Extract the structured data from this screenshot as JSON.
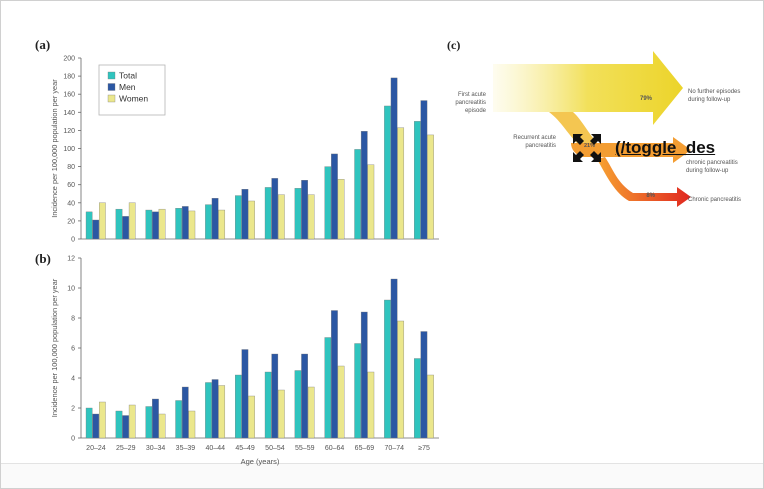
{
  "panels": {
    "a": "(a)",
    "b": "(b)",
    "c": "(c)"
  },
  "legend": [
    "Total",
    "Men",
    "Women"
  ],
  "colors": {
    "total": "#2fc4be",
    "men": "#2b57a3",
    "women": "#ebe78c",
    "axis_text": "#555555"
  },
  "toggle_link": {
    "label": "(/toggle_des",
    "icon": "expand-arrows-icon"
  },
  "chart_data": [
    {
      "type": "bar",
      "panel": "(a)",
      "ylabel": "Incidence per 100,000 population per year",
      "xlabel": "",
      "ylim": [
        0,
        200
      ],
      "yticks": [
        0,
        20,
        40,
        60,
        80,
        100,
        120,
        140,
        160,
        180,
        200
      ],
      "categories": [
        "20–24",
        "25–29",
        "30–34",
        "35–39",
        "40–44",
        "45–49",
        "50–54",
        "55–59",
        "60–64",
        "65–69",
        "70–74",
        "≥75"
      ],
      "series": [
        {
          "name": "Total",
          "values": [
            30,
            33,
            32,
            34,
            38,
            48,
            57,
            56,
            80,
            99,
            147,
            130
          ]
        },
        {
          "name": "Men",
          "values": [
            21,
            25,
            30,
            36,
            45,
            55,
            67,
            65,
            94,
            119,
            178,
            153
          ]
        },
        {
          "name": "Women",
          "values": [
            40,
            40,
            33,
            31,
            32,
            42,
            49,
            49,
            66,
            82,
            123,
            115
          ]
        }
      ],
      "legend_position": "top-left",
      "grid": false
    },
    {
      "type": "bar",
      "panel": "(b)",
      "ylabel": "Incidence per 100,000 population per year",
      "xlabel": "Age (years)",
      "ylim": [
        0,
        12
      ],
      "yticks": [
        0,
        2,
        4,
        6,
        8,
        10,
        12
      ],
      "categories": [
        "20–24",
        "25–29",
        "30–34",
        "35–39",
        "40–44",
        "45–49",
        "50–54",
        "55–59",
        "60–64",
        "65–69",
        "70–74",
        "≥75"
      ],
      "series": [
        {
          "name": "Total",
          "values": [
            2.0,
            1.8,
            2.1,
            2.5,
            3.7,
            4.2,
            4.4,
            4.5,
            6.7,
            6.3,
            9.2,
            5.3
          ]
        },
        {
          "name": "Men",
          "values": [
            1.6,
            1.5,
            2.6,
            3.4,
            3.9,
            5.9,
            5.6,
            5.6,
            8.5,
            8.4,
            10.6,
            7.1
          ]
        },
        {
          "name": "Women",
          "values": [
            2.4,
            2.2,
            1.6,
            1.8,
            3.5,
            2.8,
            3.2,
            3.4,
            4.8,
            4.4,
            7.8,
            4.2
          ]
        }
      ],
      "grid": false
    },
    {
      "type": "flow",
      "panel": "(c)",
      "nodes": [
        "First acute pancreatitis episode",
        "Recurrent acute pancreatitis",
        "No further episodes during follow-up",
        "chronic pancreatitis during follow-up",
        "Chronic pancreatitis"
      ],
      "flows": [
        {
          "from": "First acute pancreatitis episode",
          "to": "No further episodes during follow-up",
          "label": "79%",
          "value": 79
        },
        {
          "from": "First acute pancreatitis episode",
          "to": "Recurrent acute pancreatitis",
          "label": "21%",
          "value": 21
        },
        {
          "from": "Recurrent acute pancreatitis",
          "to": "chronic pancreatitis during follow-up",
          "label": "",
          "value": 13
        },
        {
          "from": "Recurrent acute pancreatitis",
          "to": "Chronic pancreatitis",
          "label": "8%",
          "value": 8
        }
      ]
    }
  ]
}
